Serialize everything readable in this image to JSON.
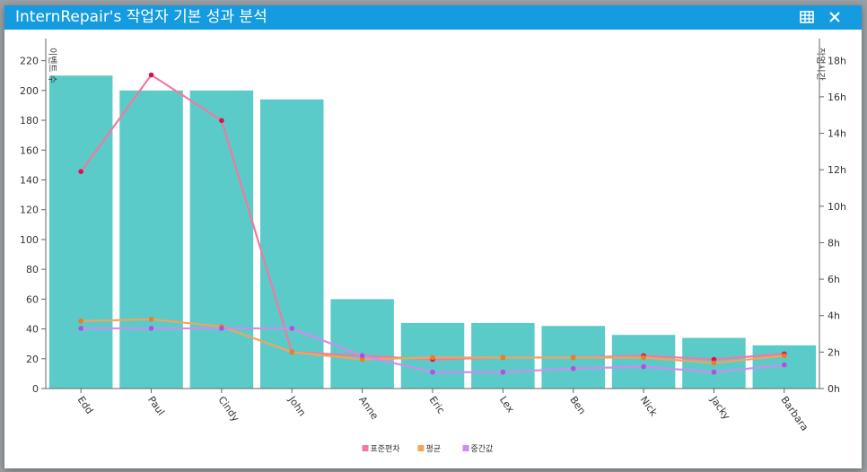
{
  "window": {
    "title": "InternRepair's 작업자 기본 성과 분석",
    "icons": {
      "export": "spreadsheet-icon",
      "close": "close-icon"
    }
  },
  "chart_data": {
    "type": "bar",
    "categories": [
      "Edd",
      "Paul",
      "Cindy",
      "John",
      "Anne",
      "Eric",
      "Lex",
      "Ben",
      "Nick",
      "Jacky",
      "Barbara"
    ],
    "left_axis": {
      "label": "이벤트 수",
      "ylim": [
        0,
        230
      ],
      "ticks": [
        0,
        20,
        40,
        60,
        80,
        100,
        120,
        140,
        160,
        180,
        200,
        220
      ]
    },
    "right_axis": {
      "label": "작업시간",
      "ylim": [
        0,
        18.8
      ],
      "ticks": [
        0,
        2,
        4,
        6,
        8,
        10,
        12,
        14,
        16,
        18
      ],
      "tick_labels": [
        "0h",
        "2h",
        "4h",
        "6h",
        "8h",
        "10h",
        "12h",
        "14h",
        "16h",
        "18h"
      ]
    },
    "bars": {
      "axis": "left",
      "color": "#5bcbc9",
      "values": [
        210,
        200,
        200,
        194,
        60,
        44,
        44,
        42,
        36,
        34,
        29
      ]
    },
    "series": [
      {
        "name": "표준편차",
        "axis": "right",
        "color": "#f07aa0",
        "marker_color": "#d6124f",
        "values": [
          11.9,
          17.2,
          14.7,
          2.0,
          1.8,
          1.6,
          1.7,
          1.7,
          1.8,
          1.6,
          1.9
        ]
      },
      {
        "name": "평균",
        "axis": "right",
        "color": "#f5a35c",
        "marker_color": "#ef7d1f",
        "values": [
          3.7,
          3.8,
          3.4,
          2.0,
          1.6,
          1.7,
          1.7,
          1.7,
          1.7,
          1.4,
          1.8
        ]
      },
      {
        "name": "중간값",
        "axis": "right",
        "color": "#d08bf0",
        "marker_color": "#b04fe0",
        "values": [
          3.3,
          3.3,
          3.3,
          3.3,
          1.8,
          0.9,
          0.9,
          1.1,
          1.2,
          0.9,
          1.3
        ]
      }
    ],
    "legend_position": "bottom-center",
    "grid": false
  }
}
